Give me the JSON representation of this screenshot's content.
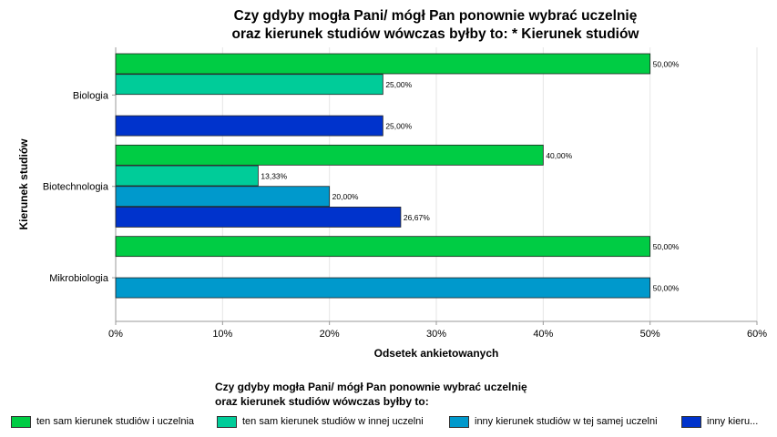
{
  "chart_data": {
    "type": "bar",
    "orientation": "horizontal",
    "title": [
      "Czy gdyby mogła Pani/ mógł Pan ponownie wybrać uczelnię",
      "oraz kierunek studiów wówczas byłby to: * Kierunek studiów"
    ],
    "xlabel": "Odsetek ankietowanych",
    "ylabel": "Kierunek studiów",
    "xlim": [
      0,
      60
    ],
    "xticks": [
      "0%",
      "10%",
      "20%",
      "30%",
      "40%",
      "50%",
      "60%"
    ],
    "grid": true,
    "legend_position": "bottom",
    "legend_title": [
      "Czy gdyby mogła Pani/ mógł Pan ponownie wybrać uczelnię",
      "oraz kierunek studiów wówczas byłby to:"
    ],
    "categories": [
      "Biologia",
      "Biotechnologia",
      "Mikrobiologia"
    ],
    "series": [
      {
        "name": "ten sam kierunek studiów i uczelnia",
        "color": "#00cc44",
        "values": [
          50,
          40,
          50
        ],
        "labels": [
          "50,00%",
          "40,00%",
          "50,00%"
        ]
      },
      {
        "name": "ten sam kierunek studiów w innej uczelni",
        "color": "#00cc99",
        "values": [
          25,
          13.33,
          null
        ],
        "labels": [
          "25,00%",
          "13,33%",
          ""
        ]
      },
      {
        "name": "inny kierunek studiów w tej samej uczelni",
        "color": "#0099cc",
        "values": [
          null,
          20,
          50
        ],
        "labels": [
          "",
          "20,00%",
          "50,00%"
        ]
      },
      {
        "name": "inny kieru...",
        "color": "#0033cc",
        "values": [
          25,
          26.67,
          null
        ],
        "labels": [
          "25,00%",
          "26,67%",
          ""
        ]
      }
    ]
  }
}
